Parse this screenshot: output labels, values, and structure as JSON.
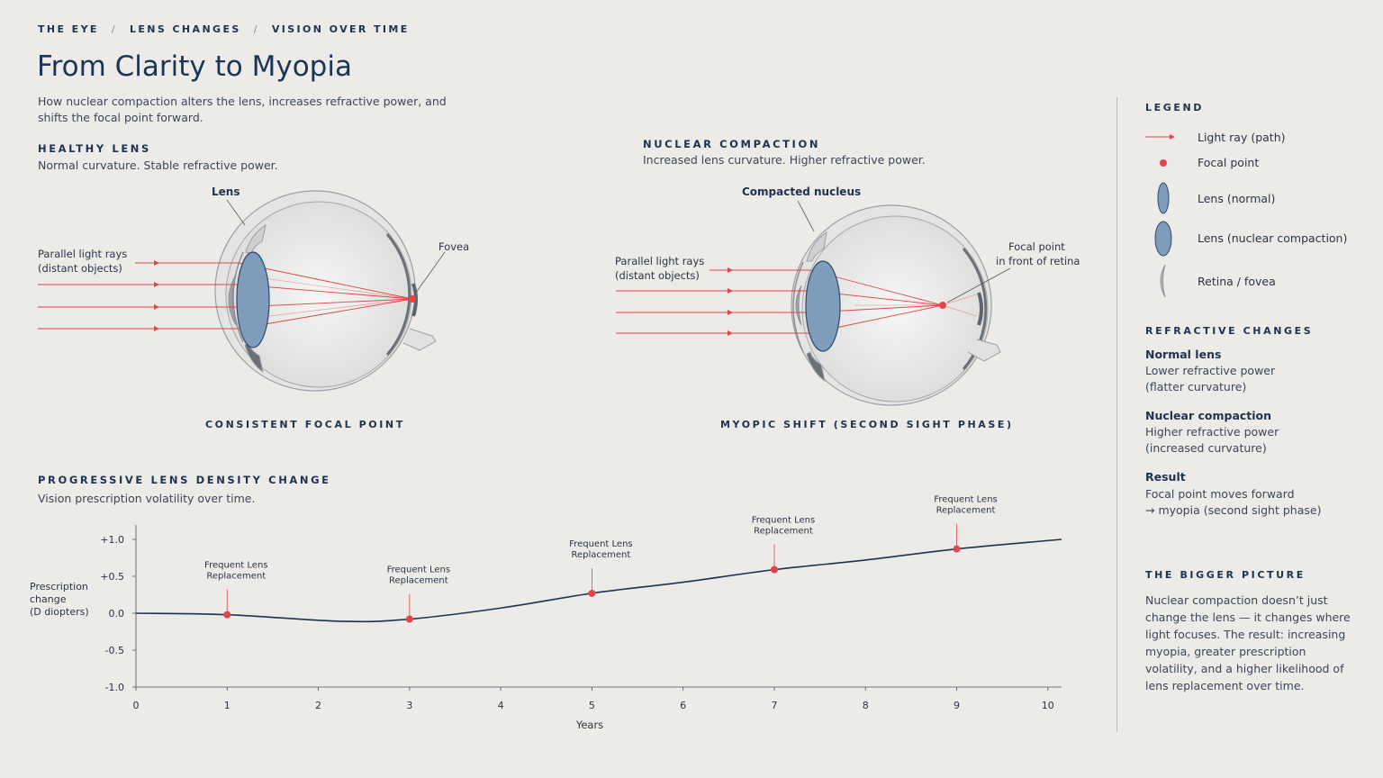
{
  "breadcrumb": [
    "THE EYE",
    "LENS CHANGES",
    "VISION OVER TIME"
  ],
  "breadcrumb_sep": "/",
  "title": "From Clarity to Myopia",
  "subtitle": "How nuclear compaction alters the lens, increases refractive power, and shifts the focal point forward.",
  "healthy": {
    "heading": "HEALTHY LENS",
    "desc": "Normal curvature. Stable refractive power.",
    "lens_label": "Lens",
    "rays_label_1": "Parallel light rays",
    "rays_label_2": "(distant objects)",
    "fovea_label": "Fovea",
    "caption": "CONSISTENT FOCAL POINT"
  },
  "compaction": {
    "heading": "NUCLEAR COMPACTION",
    "desc": "Increased lens curvature. Higher refractive power.",
    "nucleus_label": "Compacted nucleus",
    "rays_label_1": "Parallel light rays",
    "rays_label_2": "(distant objects)",
    "focal_label_1": "Focal point",
    "focal_label_2": "in front of retina",
    "caption": "MYOPIC SHIFT (SECOND SIGHT PHASE)"
  },
  "progressive": {
    "heading": "PROGRESSIVE LENS DENSITY CHANGE",
    "desc": "Vision prescription volatility over time."
  },
  "legend": {
    "heading": "LEGEND",
    "items": [
      "Light ray (path)",
      "Focal point",
      "Lens (normal)",
      "Lens (nuclear compaction)",
      "Retina / fovea"
    ]
  },
  "refractive": {
    "heading": "REFRACTIVE CHANGES",
    "items": [
      {
        "title": "Normal lens",
        "line1": "Lower refractive power",
        "line2": "(flatter curvature)"
      },
      {
        "title": "Nuclear compaction",
        "line1": "Higher refractive power",
        "line2": "(increased curvature)"
      },
      {
        "title": "Result",
        "line1": "Focal point moves forward",
        "line2": "→ myopia (second sight phase)"
      }
    ]
  },
  "bigger_picture": {
    "heading": "THE BIGGER PICTURE",
    "text": "Nuclear compaction doesn’t just change the lens — it changes where light focuses. The result: increasing myopia, greater prescription volatility, and a higher likelihood of lens replacement over time."
  },
  "colors": {
    "ray": "#e0454a",
    "lens": "#7f9cba",
    "line": "#1f3350",
    "background": "#ecebe8"
  },
  "chart_data": {
    "type": "line",
    "xlabel": "Years",
    "ylabel_lines": [
      "Prescription",
      "change",
      "(D diopters)"
    ],
    "x_ticks": [
      "0",
      "1",
      "2",
      "3",
      "4",
      "5",
      "6",
      "7",
      "8",
      "9",
      "10"
    ],
    "y_ticks": [
      "+1.0",
      "+0.5",
      "0.0",
      "-0.5",
      "-1.0"
    ],
    "xlim": [
      0,
      10.15
    ],
    "ylim": [
      -1.0,
      1.0
    ],
    "grid": false,
    "series": [
      {
        "x": [
          0,
          1,
          2.25,
          3,
          4,
          5,
          6,
          7,
          8,
          9,
          10.15
        ],
        "y": [
          0.0,
          -0.02,
          -0.11,
          -0.08,
          0.07,
          0.27,
          0.42,
          0.59,
          0.72,
          0.87,
          1.0
        ]
      }
    ],
    "annotations": [
      {
        "x": 1,
        "y": -0.02,
        "text_1": "Frequent Lens",
        "text_2": "Replacement"
      },
      {
        "x": 3,
        "y": -0.08,
        "text_1": "Frequent Lens",
        "text_2": "Replacement"
      },
      {
        "x": 5,
        "y": 0.27,
        "text_1": "Frequent Lens",
        "text_2": "Replacement"
      },
      {
        "x": 7,
        "y": 0.59,
        "text_1": "Frequent Lens",
        "text_2": "Replacement"
      },
      {
        "x": 9,
        "y": 0.87,
        "text_1": "Frequent Lens",
        "text_2": "Replacement"
      }
    ]
  }
}
